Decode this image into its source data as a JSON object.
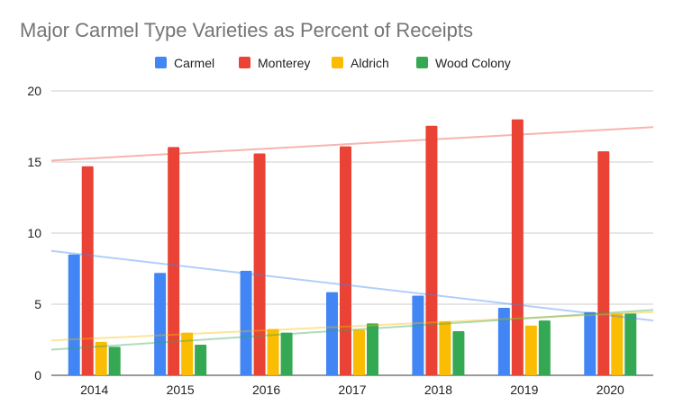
{
  "chart_data": {
    "type": "bar",
    "title": "Major Carmel Type Varieties as Percent of Receipts",
    "xlabel": "",
    "ylabel": "",
    "categories": [
      "2014",
      "2015",
      "2016",
      "2017",
      "2018",
      "2019",
      "2020"
    ],
    "series": [
      {
        "name": "Carmel",
        "color": "#4285f4",
        "values": [
          8.5,
          7.2,
          7.35,
          5.85,
          5.6,
          4.75,
          4.45
        ]
      },
      {
        "name": "Monterey",
        "color": "#ea4335",
        "values": [
          14.7,
          16.05,
          15.6,
          16.1,
          17.55,
          18.0,
          15.75
        ]
      },
      {
        "name": "Aldrich",
        "color": "#fbbc04",
        "values": [
          2.35,
          3.0,
          3.25,
          3.2,
          3.8,
          3.5,
          4.35
        ]
      },
      {
        "name": "Wood Colony",
        "color": "#34a853",
        "values": [
          2.0,
          2.15,
          3.0,
          3.65,
          3.1,
          3.85,
          4.35
        ]
      }
    ],
    "trendlines": [
      {
        "series": "Carmel",
        "start": 8.75,
        "end": 3.85
      },
      {
        "series": "Monterey",
        "start": 15.1,
        "end": 17.45
      },
      {
        "series": "Aldrich",
        "start": 2.45,
        "end": 4.45
      },
      {
        "series": "Wood Colony",
        "start": 1.8,
        "end": 4.6
      }
    ],
    "ylim": [
      0,
      20
    ],
    "yticks": [
      "0",
      "5",
      "10",
      "15",
      "20"
    ],
    "grid": true,
    "legend_position": "top"
  }
}
